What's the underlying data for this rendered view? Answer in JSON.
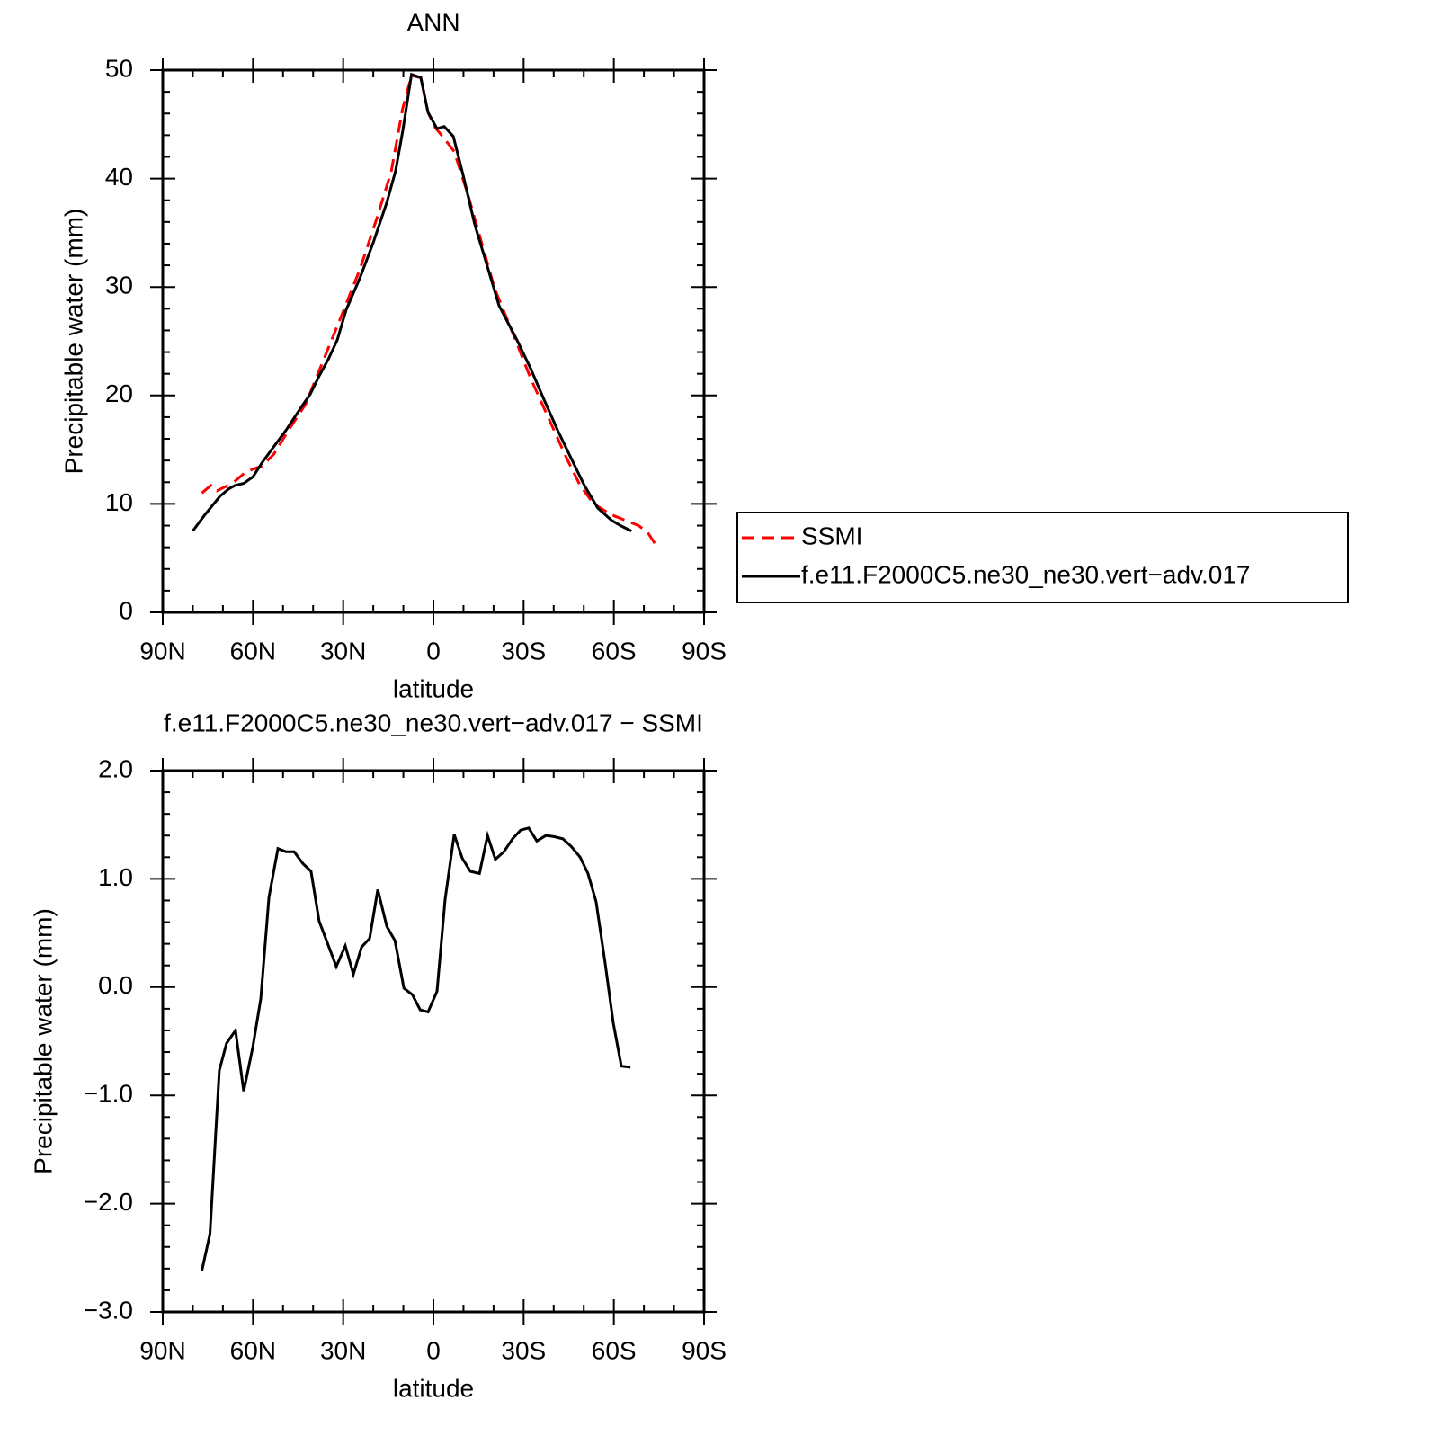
{
  "chart_data": [
    {
      "type": "line",
      "title": "ANN",
      "xlabel": "latitude",
      "ylabel": "Precipitable water (mm)",
      "xlim": [
        90,
        -90
      ],
      "xticks": [
        {
          "value": 90,
          "label": "90N"
        },
        {
          "value": 60,
          "label": "60N"
        },
        {
          "value": 30,
          "label": "30N"
        },
        0,
        {
          "value": -30,
          "label": "30S"
        },
        {
          "value": -60,
          "label": "60S"
        },
        {
          "value": -90,
          "label": "90S"
        }
      ],
      "ylim": [
        0,
        50
      ],
      "yticks": [
        0,
        10,
        20,
        30,
        40,
        50
      ],
      "legend": "right",
      "series": [
        {
          "name": "SSMI",
          "color": "#ff0000",
          "style": "dashed",
          "x": [
            77,
            74,
            72,
            69,
            66,
            63,
            60,
            57,
            53,
            48.4,
            42.5,
            36.5,
            30.5,
            24.5,
            18.5,
            14,
            10.2,
            7.3,
            4.2,
            1.8,
            -0.6,
            -3.9,
            -6.9,
            -11.4,
            -15.9,
            -20.3,
            -26.3,
            -32.3,
            -38.3,
            -44.3,
            -48.8,
            -53.3,
            -59.2,
            -63.7,
            -68.2,
            -71.2,
            -74.2
          ],
          "values": [
            11.0,
            11.7,
            11.2,
            11.6,
            12.1,
            12.8,
            13.2,
            13.5,
            14.6,
            16.7,
            19.2,
            23.3,
            27.4,
            31.6,
            36.6,
            40.7,
            46.5,
            49.5,
            49.3,
            46.1,
            44.7,
            43.6,
            42.5,
            38.6,
            34.2,
            29.9,
            25.8,
            21.6,
            17.9,
            14.2,
            11.7,
            10.0,
            9.0,
            8.5,
            8.0,
            7.4,
            6.1
          ]
        },
        {
          "name": "f.e11.F2000C5.ne30_ne30.vert−adv.017",
          "color": "#000000",
          "style": "solid",
          "x": [
            80,
            76,
            71,
            68,
            66,
            63,
            60,
            57,
            53,
            49,
            44,
            41,
            38,
            35,
            32,
            29,
            24.5,
            20,
            15.5,
            12.6,
            10.2,
            7.3,
            4.2,
            1.8,
            -1.2,
            -3.6,
            -6.6,
            -9.9,
            -13.8,
            -17.4,
            -21.8,
            -27.8,
            -32.3,
            -36.8,
            -41.3,
            -45.8,
            -50.2,
            -54.7,
            -59.2,
            -62.2,
            -65.8
          ],
          "values": [
            7.5,
            9.0,
            10.7,
            11.4,
            11.7,
            11.9,
            12.5,
            13.8,
            15.3,
            16.8,
            18.9,
            20.1,
            21.8,
            23.3,
            25.1,
            27.9,
            30.8,
            34.1,
            37.8,
            40.7,
            44.4,
            49.6,
            49.3,
            46.1,
            44.6,
            44.8,
            43.9,
            40.3,
            35.7,
            32.4,
            28.3,
            25.1,
            22.5,
            19.6,
            16.8,
            14.2,
            11.7,
            9.6,
            8.5,
            8.0,
            7.5
          ]
        }
      ]
    },
    {
      "type": "line",
      "title": "f.e11.F2000C5.ne30_ne30.vert−adv.017 − SSMI",
      "xlabel": "latitude",
      "ylabel": "Precipitable water (mm)",
      "xlim": [
        90,
        -90
      ],
      "xticks": [
        {
          "value": 90,
          "label": "90N"
        },
        {
          "value": 60,
          "label": "60N"
        },
        {
          "value": 30,
          "label": "30N"
        },
        0,
        {
          "value": -30,
          "label": "30S"
        },
        {
          "value": -60,
          "label": "60S"
        },
        {
          "value": -90,
          "label": "90S"
        }
      ],
      "ylim": [
        -3,
        2
      ],
      "yticks": [
        {
          "value": -3,
          "label": "−3.0"
        },
        {
          "value": -2,
          "label": "−2.0"
        },
        {
          "value": -1,
          "label": "−1.0"
        },
        {
          "value": 0,
          "label": "0.0"
        },
        {
          "value": 1,
          "label": "1.0"
        },
        {
          "value": 2,
          "label": "2.0"
        }
      ],
      "series": [
        {
          "color": "#000000",
          "style": "solid",
          "x": [
            77,
            74.3,
            71.2,
            68.8,
            65.8,
            63.1,
            60.1,
            57.4,
            54.7,
            51.7,
            49.0,
            46.3,
            43.4,
            40.7,
            38.0,
            35.0,
            32.3,
            29.3,
            26.6,
            23.9,
            21.2,
            18.5,
            15.5,
            12.8,
            9.8,
            7.0,
            4.4,
            1.8,
            -1.2,
            -3.9,
            -6.9,
            -9.6,
            -12.3,
            -15.3,
            -18.0,
            -20.6,
            -23.4,
            -26.3,
            -29.0,
            -31.7,
            -34.4,
            -37.4,
            -40.1,
            -43.1,
            -45.8,
            -48.8,
            -51.4,
            -54.1,
            -57.1,
            -59.8,
            -62.5,
            -65.5
          ],
          "values": [
            -2.62,
            -2.28,
            -0.77,
            -0.52,
            -0.4,
            -0.96,
            -0.56,
            -0.11,
            0.83,
            1.28,
            1.25,
            1.25,
            1.14,
            1.07,
            0.61,
            0.39,
            0.19,
            0.38,
            0.12,
            0.37,
            0.45,
            0.9,
            0.56,
            0.43,
            -0.01,
            -0.07,
            -0.21,
            -0.23,
            -0.04,
            0.81,
            1.41,
            1.19,
            1.07,
            1.05,
            1.4,
            1.18,
            1.25,
            1.37,
            1.45,
            1.47,
            1.35,
            1.4,
            1.39,
            1.37,
            1.3,
            1.2,
            1.05,
            0.79,
            0.22,
            -0.33,
            -0.73,
            -0.74
          ]
        }
      ]
    }
  ]
}
